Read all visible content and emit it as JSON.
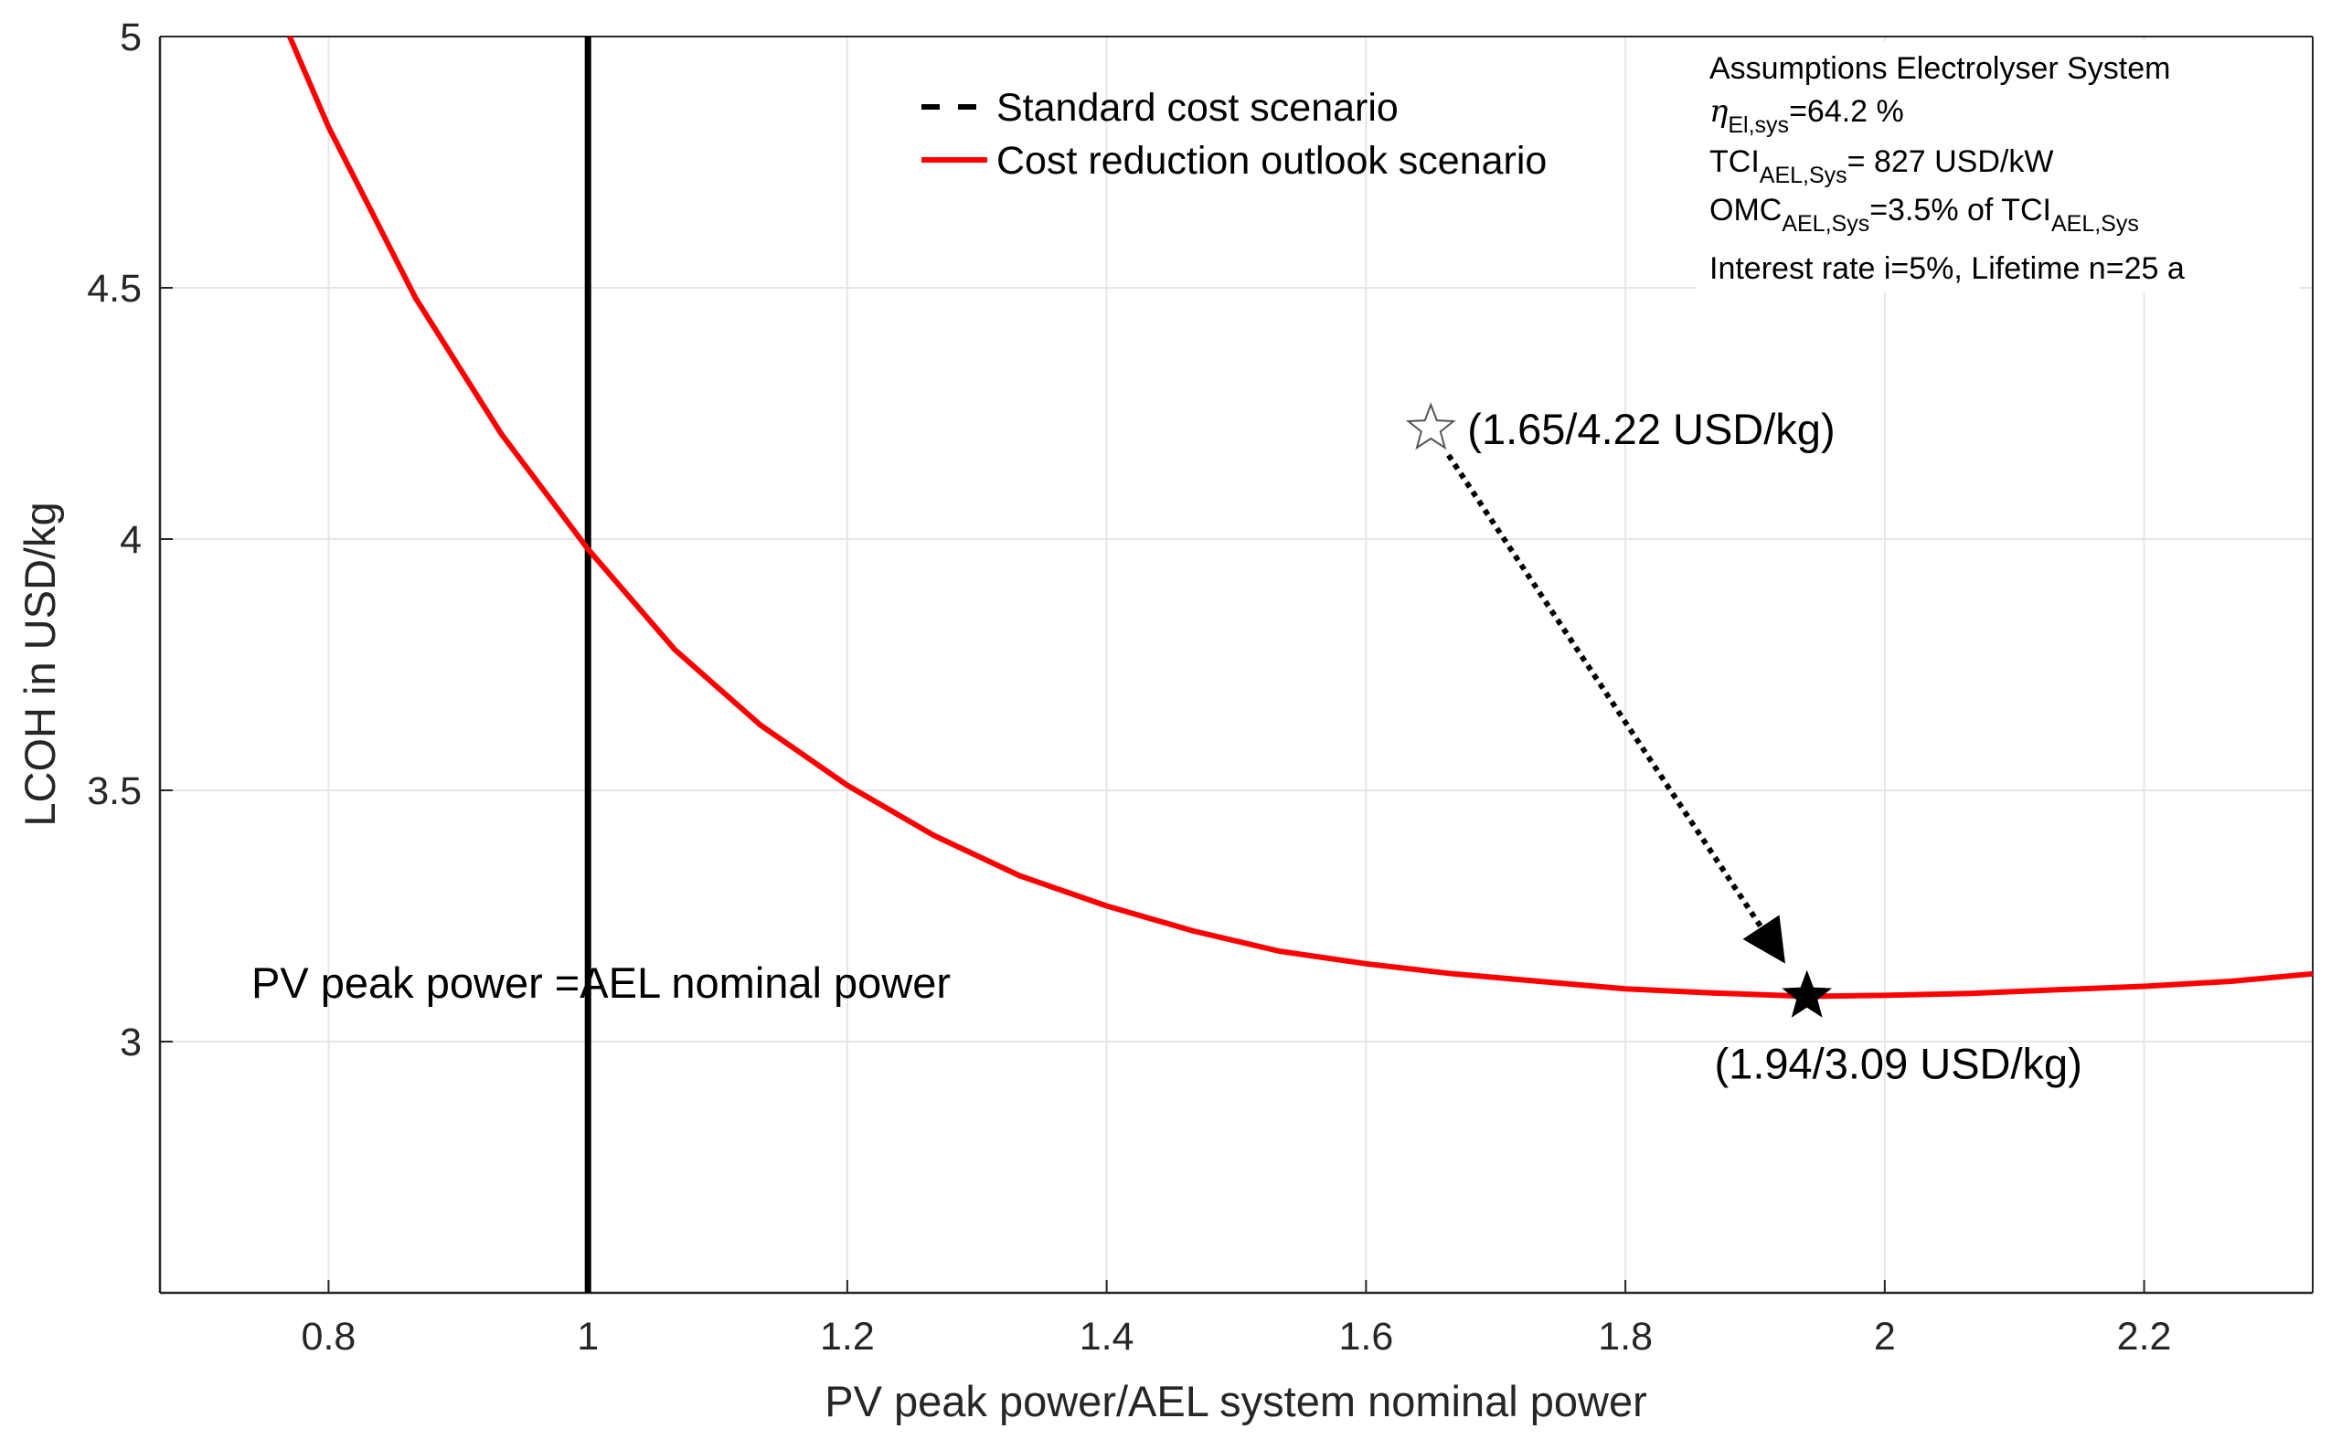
{
  "chart_data": {
    "type": "line",
    "title": "",
    "xlabel": "PV peak power/AEL system nominal power",
    "ylabel": "LCOH in USD/kg",
    "xlim": [
      0.67,
      2.33
    ],
    "ylim": [
      2.5,
      5.0
    ],
    "grid": true,
    "legend_position": "top-center",
    "x_ticks": [
      0.8,
      1,
      1.2,
      1.4,
      1.6,
      1.8,
      2,
      2.2
    ],
    "x_tick_labels": [
      "0.8",
      "1",
      "1.2",
      "1.4",
      "1.6",
      "1.8",
      "2",
      "2.2"
    ],
    "y_ticks": [
      3,
      3.5,
      4,
      4.5,
      5
    ],
    "y_tick_labels": [
      "3",
      "3.5",
      "4",
      "4.5",
      "5"
    ],
    "series": [
      {
        "name": "Standard cost scenario",
        "style": "dashed",
        "color": "#000000",
        "x": [
          1,
          1
        ],
        "y": [
          2.5,
          5.0
        ]
      },
      {
        "name": "Cost reduction outlook scenario",
        "style": "solid",
        "color": "#ff0000",
        "x": [
          0.77,
          0.8,
          0.867,
          0.933,
          1.0,
          1.067,
          1.133,
          1.2,
          1.267,
          1.333,
          1.4,
          1.467,
          1.533,
          1.6,
          1.667,
          1.733,
          1.8,
          1.867,
          1.94,
          2.0,
          2.067,
          2.133,
          2.2,
          2.267,
          2.33
        ],
        "y": [
          5.0,
          4.82,
          4.48,
          4.21,
          3.98,
          3.78,
          3.63,
          3.51,
          3.41,
          3.33,
          3.27,
          3.22,
          3.18,
          3.155,
          3.135,
          3.12,
          3.105,
          3.097,
          3.09,
          3.092,
          3.096,
          3.103,
          3.11,
          3.12,
          3.135
        ]
      }
    ],
    "markers": [
      {
        "name": "standard-optimum",
        "x": 1.65,
        "y": 4.22,
        "style": "hollow-star",
        "label": "(1.65/4.22 USD/kg)"
      },
      {
        "name": "outlook-optimum",
        "x": 1.94,
        "y": 3.09,
        "style": "filled-star",
        "label": "(1.94/3.09 USD/kg)"
      }
    ],
    "annotations": {
      "vertical_line_label": "PV peak power =AEL nominal power",
      "assumptions": {
        "title": "Assumptions Electrolyser System",
        "eta_symbol": "η",
        "eta_sub": "El,sys",
        "eta_value": "=64.2 %",
        "tci_main": "TCI",
        "tci_sub": "AEL,Sys",
        "tci_value": "= 827 USD/kW",
        "omc_main": "OMC",
        "omc_sub": "AEL,Sys",
        "omc_value": "=3.5% of TCI",
        "omc_value_sub": "AEL,Sys",
        "interest": "Interest rate i=5%, Lifetime n=25 a"
      }
    }
  }
}
